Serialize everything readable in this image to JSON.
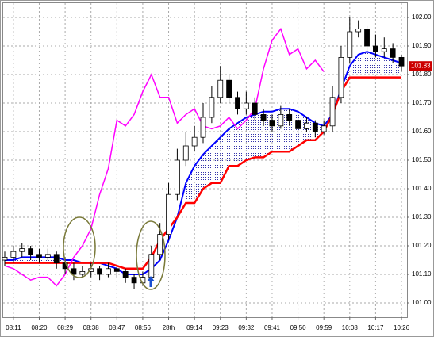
{
  "chart_data": {
    "type": "candlestick",
    "categories": [
      null,
      "08:11",
      null,
      null,
      "08:20",
      null,
      null,
      "08:29",
      null,
      null,
      "08:38",
      null,
      null,
      "08:47",
      null,
      null,
      "08:56",
      null,
      null,
      "28th",
      null,
      null,
      "09:14",
      null,
      null,
      "09:23",
      null,
      null,
      "09:32",
      null,
      null,
      "09:41",
      null,
      null,
      "09:50",
      null,
      null,
      "09:59",
      null,
      null,
      "10:08",
      null,
      null,
      "10:17",
      null,
      null,
      "10:26"
    ],
    "open": [
      101.15,
      101.16,
      101.18,
      101.19,
      101.17,
      101.16,
      101.17,
      101.14,
      101.12,
      101.1,
      101.11,
      101.12,
      101.1,
      101.12,
      101.11,
      101.09,
      101.07,
      101.09,
      101.17,
      101.24,
      101.38,
      101.5,
      101.55,
      101.58,
      101.65,
      101.72,
      101.78,
      101.72,
      101.68,
      101.7,
      101.66,
      101.64,
      101.62,
      101.66,
      101.64,
      101.61,
      101.63,
      101.6,
      101.62,
      101.72,
      101.86,
      101.95,
      101.96,
      101.9,
      101.88,
      101.89,
      101.86
    ],
    "high": [
      101.18,
      101.2,
      101.21,
      101.2,
      101.19,
      101.19,
      101.18,
      101.16,
      101.14,
      101.13,
      101.14,
      101.13,
      101.14,
      101.13,
      101.12,
      101.1,
      101.11,
      101.2,
      101.28,
      101.42,
      101.54,
      101.6,
      101.62,
      101.7,
      101.76,
      101.83,
      101.8,
      101.74,
      101.74,
      101.72,
      101.68,
      101.66,
      101.69,
      101.68,
      101.66,
      101.65,
      101.64,
      101.64,
      101.76,
      101.9,
      102.0,
      101.99,
      101.97,
      101.94,
      101.93,
      101.91,
      101.87
    ],
    "low": [
      101.13,
      101.14,
      101.16,
      101.15,
      101.14,
      101.15,
      101.12,
      101.1,
      101.08,
      101.09,
      101.09,
      101.08,
      101.09,
      101.09,
      101.07,
      101.05,
      101.06,
      101.07,
      101.15,
      101.22,
      101.36,
      101.48,
      101.53,
      101.56,
      101.63,
      101.7,
      101.7,
      101.66,
      101.66,
      101.64,
      101.62,
      101.6,
      101.61,
      101.62,
      101.59,
      101.6,
      101.58,
      101.59,
      101.6,
      101.7,
      101.84,
      101.93,
      101.88,
      101.86,
      101.86,
      101.84,
      101.81
    ],
    "close": [
      101.16,
      101.18,
      101.19,
      101.17,
      101.16,
      101.17,
      101.14,
      101.12,
      101.1,
      101.11,
      101.12,
      101.1,
      101.12,
      101.11,
      101.09,
      101.07,
      101.09,
      101.17,
      101.24,
      101.38,
      101.5,
      101.55,
      101.58,
      101.65,
      101.72,
      101.78,
      101.72,
      101.68,
      101.7,
      101.66,
      101.64,
      101.62,
      101.66,
      101.64,
      101.61,
      101.63,
      101.6,
      101.62,
      101.72,
      101.86,
      101.95,
      101.96,
      101.9,
      101.88,
      101.89,
      101.86,
      101.83
    ],
    "series": [
      {
        "color": "#0000ff",
        "values": [
          101.15,
          101.15,
          101.16,
          101.16,
          101.16,
          101.16,
          101.16,
          101.15,
          101.15,
          101.14,
          101.14,
          101.14,
          101.13,
          101.12,
          101.1,
          101.1,
          101.1,
          101.12,
          101.15,
          101.22,
          101.3,
          101.42,
          101.48,
          101.52,
          101.55,
          101.58,
          101.61,
          101.63,
          101.65,
          101.66,
          101.67,
          101.67,
          101.68,
          101.68,
          101.67,
          101.65,
          101.63,
          101.62,
          101.66,
          101.75,
          101.83,
          101.87,
          101.88,
          101.87,
          101.86,
          101.85,
          101.84
        ]
      },
      {
        "color": "#ff0000",
        "values": [
          101.14,
          101.14,
          101.14,
          101.14,
          101.14,
          101.14,
          101.14,
          101.14,
          101.14,
          101.14,
          101.14,
          101.14,
          101.14,
          101.13,
          101.12,
          101.12,
          101.12,
          101.16,
          101.22,
          101.26,
          101.3,
          101.35,
          101.35,
          101.4,
          101.42,
          101.42,
          101.48,
          101.48,
          101.5,
          101.51,
          101.51,
          101.53,
          101.53,
          101.53,
          101.55,
          101.57,
          101.57,
          101.6,
          101.66,
          101.74,
          101.79,
          101.79,
          101.79,
          101.79,
          101.79,
          101.79,
          101.79
        ]
      },
      {
        "color": "#ff00ff",
        "values": [
          101.13,
          101.12,
          101.1,
          101.08,
          101.09,
          101.09,
          101.06,
          101.1,
          101.16,
          101.2,
          101.26,
          101.38,
          101.47,
          101.64,
          101.62,
          101.66,
          101.74,
          101.8,
          101.72,
          101.72,
          101.63,
          101.66,
          101.68,
          101.62,
          101.61,
          101.62,
          101.65,
          101.61,
          101.64,
          101.68,
          101.82,
          101.92,
          101.96,
          101.87,
          101.89,
          101.82,
          101.85,
          101.81,
          null,
          null,
          null,
          null,
          null,
          null,
          null,
          null,
          null
        ]
      }
    ],
    "cloud_color": "#3333aa",
    "last_price": 101.83,
    "last_price_color": "#cc0000",
    "ylim": [
      100.95,
      102.05
    ],
    "yticks": [
      {
        "value": 101,
        "label": "101.00"
      },
      {
        "value": 101.1,
        "label": "101.10"
      },
      {
        "value": 101.2,
        "label": "101.20"
      },
      {
        "value": 101.3,
        "label": "101.30"
      },
      {
        "value": 101.4,
        "label": "101.40"
      },
      {
        "value": 101.5,
        "label": "101.50"
      },
      {
        "value": 101.6,
        "label": "101.60"
      },
      {
        "value": 101.7,
        "label": "101.70"
      },
      {
        "value": 101.8,
        "label": "101.80"
      },
      {
        "value": 101.9,
        "label": "101.90"
      },
      {
        "value": 102,
        "label": "102.00"
      }
    ],
    "grid": true
  }
}
